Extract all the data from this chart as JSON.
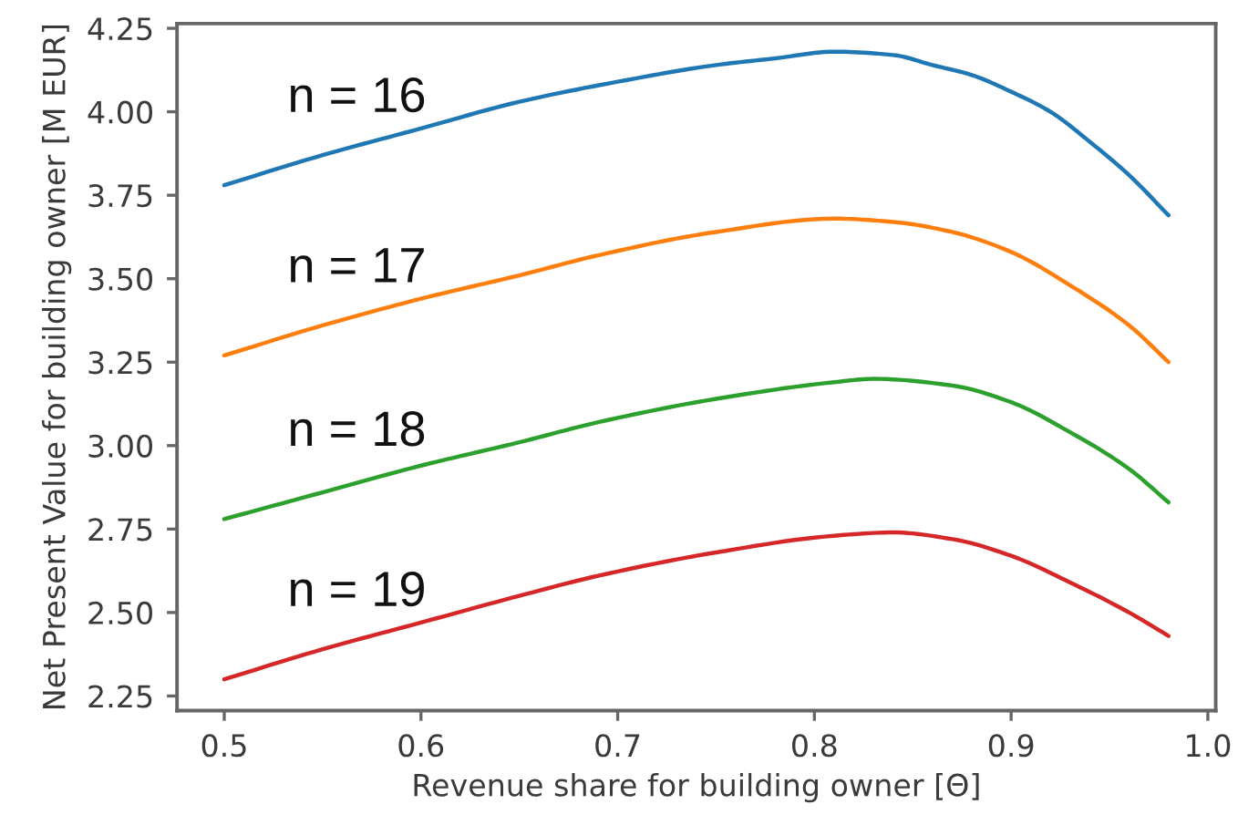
{
  "chart_data": {
    "type": "line",
    "xlabel": "Revenue share for building owner [Θ]",
    "ylabel": "Net Present Value for building owner [M EUR]",
    "xlim": [
      0.476,
      1.004
    ],
    "ylim": [
      2.206,
      4.264
    ],
    "xticks": [
      0.5,
      0.6,
      0.7,
      0.8,
      0.9,
      {
        "value": 1.0,
        "label": "1.0"
      }
    ],
    "yticks": [
      {
        "value": 2.25,
        "label": "2.25"
      },
      {
        "value": 2.5,
        "label": "2.50"
      },
      {
        "value": 2.75,
        "label": "2.75"
      },
      {
        "value": 3.0,
        "label": "3.00"
      },
      {
        "value": 3.25,
        "label": "3.25"
      },
      {
        "value": 3.5,
        "label": "3.50"
      },
      {
        "value": 3.75,
        "label": "3.75"
      },
      {
        "value": 4.0,
        "label": "4.00"
      },
      {
        "value": 4.25,
        "label": "4.25"
      }
    ],
    "series": [
      {
        "name": "n = 16",
        "color": "#1f77b4",
        "x": [
          0.5,
          0.55,
          0.6,
          0.65,
          0.7,
          0.75,
          0.78,
          0.81,
          0.84,
          0.86,
          0.88,
          0.9,
          0.92,
          0.94,
          0.96,
          0.98
        ],
        "values": [
          3.78,
          3.87,
          3.95,
          4.03,
          4.09,
          4.14,
          4.16,
          4.18,
          4.17,
          4.14,
          4.11,
          4.06,
          4.0,
          3.91,
          3.81,
          3.69
        ]
      },
      {
        "name": "n = 17",
        "color": "#ff7f0e",
        "x": [
          0.5,
          0.55,
          0.6,
          0.65,
          0.69,
          0.75,
          0.81,
          0.84,
          0.87,
          0.9,
          0.93,
          0.96,
          0.98
        ],
        "values": [
          3.27,
          3.36,
          3.44,
          3.51,
          3.57,
          3.64,
          3.68,
          3.67,
          3.64,
          3.58,
          3.48,
          3.36,
          3.25
        ]
      },
      {
        "name": "n = 18",
        "color": "#2ca02c",
        "x": [
          0.5,
          0.55,
          0.6,
          0.65,
          0.69,
          0.75,
          0.81,
          0.83,
          0.87,
          0.9,
          0.93,
          0.96,
          0.98
        ],
        "values": [
          2.78,
          2.86,
          2.94,
          3.01,
          3.07,
          3.14,
          3.19,
          3.2,
          3.18,
          3.13,
          3.04,
          2.93,
          2.83
        ]
      },
      {
        "name": "n = 19",
        "color": "#d62728",
        "x": [
          0.5,
          0.55,
          0.6,
          0.65,
          0.69,
          0.75,
          0.81,
          0.84,
          0.87,
          0.9,
          0.93,
          0.96,
          0.98
        ],
        "values": [
          2.3,
          2.39,
          2.47,
          2.55,
          2.61,
          2.68,
          2.73,
          2.74,
          2.72,
          2.67,
          2.59,
          2.5,
          2.43
        ]
      }
    ]
  }
}
